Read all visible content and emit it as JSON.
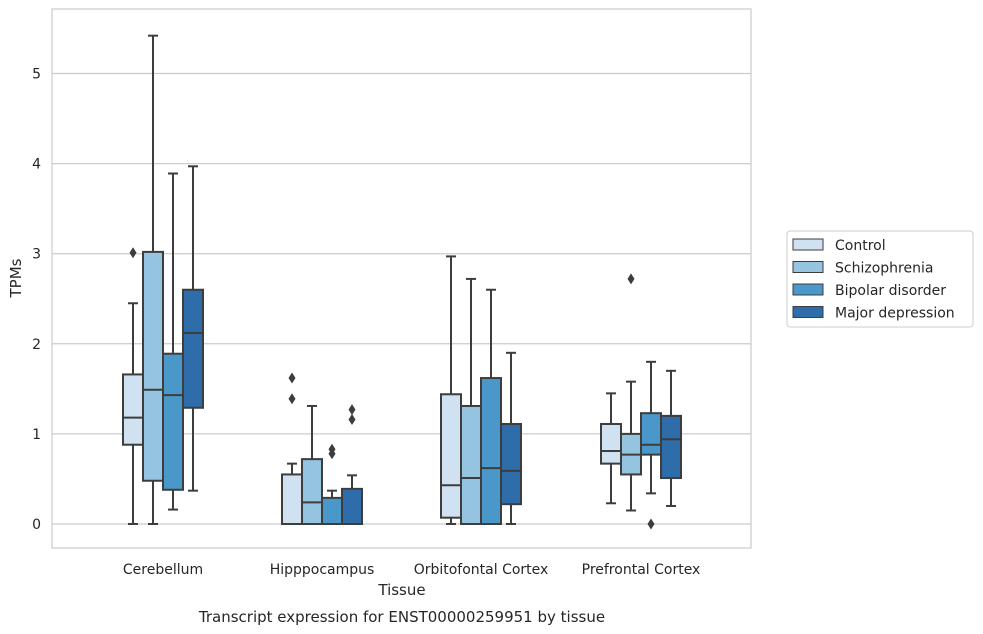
{
  "chart_data": {
    "type": "box",
    "xlabel": "Tissue",
    "ylabel": "TPMs",
    "caption": "Transcript expression for ENST00000259951 by tissue",
    "ylim": [
      -0.26,
      5.72
    ],
    "yticks": [
      0,
      1,
      2,
      3,
      4,
      5
    ],
    "grid": "horizontal",
    "legend_position": "right",
    "categories": [
      "Cerebellum",
      "Hipppocampus",
      "Orbitofontal Cortex",
      "Prefrontal Cortex"
    ],
    "series": [
      {
        "name": "Control",
        "color": "#d0e1f2",
        "boxes": [
          {
            "whislo": 0.0,
            "q1": 0.88,
            "med": 1.18,
            "q3": 1.66,
            "whishi": 2.45,
            "fliers": [
              3.01
            ]
          },
          {
            "whislo": 0.0,
            "q1": 0.0,
            "med": 0.0,
            "q3": 0.55,
            "whishi": 0.67,
            "fliers": [
              1.62,
              1.39
            ]
          },
          {
            "whislo": 0.0,
            "q1": 0.07,
            "med": 0.43,
            "q3": 1.44,
            "whishi": 2.97,
            "fliers": []
          },
          {
            "whislo": 0.23,
            "q1": 0.67,
            "med": 0.81,
            "q3": 1.11,
            "whishi": 1.45,
            "fliers": []
          }
        ]
      },
      {
        "name": "Schizophrenia",
        "color": "#94c4df",
        "boxes": [
          {
            "whislo": 0.0,
            "q1": 0.48,
            "med": 1.49,
            "q3": 3.02,
            "whishi": 5.42,
            "fliers": []
          },
          {
            "whislo": 0.0,
            "q1": 0.0,
            "med": 0.24,
            "q3": 0.72,
            "whishi": 1.31,
            "fliers": []
          },
          {
            "whislo": 0.0,
            "q1": 0.0,
            "med": 0.51,
            "q3": 1.31,
            "whishi": 2.72,
            "fliers": []
          },
          {
            "whislo": 0.15,
            "q1": 0.55,
            "med": 0.77,
            "q3": 1.0,
            "whishi": 1.58,
            "fliers": [
              2.72
            ]
          }
        ]
      },
      {
        "name": "Bipolar disorder",
        "color": "#4a98c9",
        "boxes": [
          {
            "whislo": 0.16,
            "q1": 0.38,
            "med": 1.43,
            "q3": 1.89,
            "whishi": 3.89,
            "fliers": []
          },
          {
            "whislo": 0.0,
            "q1": 0.0,
            "med": 0.0,
            "q3": 0.29,
            "whishi": 0.37,
            "fliers": [
              0.83,
              0.78
            ]
          },
          {
            "whislo": 0.0,
            "q1": 0.0,
            "med": 0.62,
            "q3": 1.62,
            "whishi": 2.6,
            "fliers": []
          },
          {
            "whislo": 0.34,
            "q1": 0.77,
            "med": 0.88,
            "q3": 1.23,
            "whishi": 1.8,
            "fliers": [
              0.0
            ]
          }
        ]
      },
      {
        "name": "Major depression",
        "color": "#2e6da9",
        "boxes": [
          {
            "whislo": 0.37,
            "q1": 1.29,
            "med": 2.12,
            "q3": 2.6,
            "whishi": 3.97,
            "fliers": []
          },
          {
            "whislo": 0.0,
            "q1": 0.0,
            "med": 0.0,
            "q3": 0.39,
            "whishi": 0.54,
            "fliers": [
              1.27,
              1.16
            ]
          },
          {
            "whislo": 0.0,
            "q1": 0.22,
            "med": 0.59,
            "q3": 1.11,
            "whishi": 1.9,
            "fliers": []
          },
          {
            "whislo": 0.2,
            "q1": 0.51,
            "med": 0.94,
            "q3": 1.2,
            "whishi": 1.7,
            "fliers": []
          }
        ]
      }
    ]
  }
}
